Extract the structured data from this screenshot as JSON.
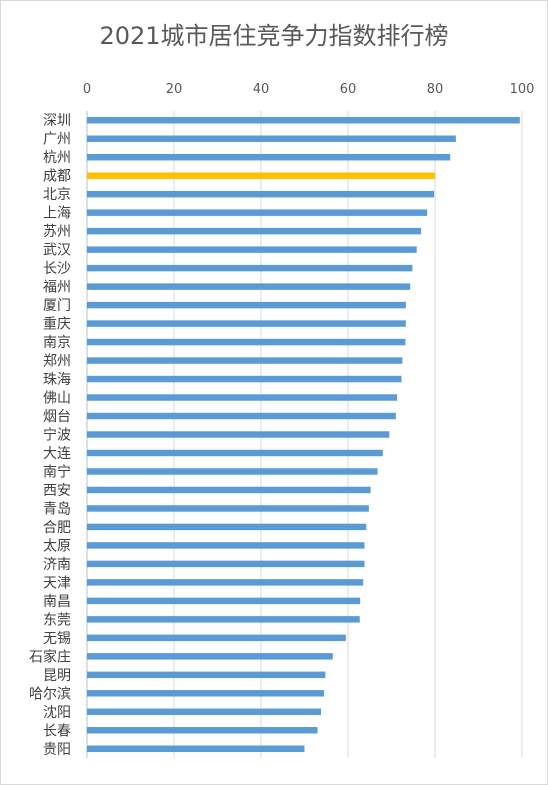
{
  "chart_data": {
    "type": "bar",
    "orientation": "horizontal",
    "title": "2021城市居住竞争力指数排行榜",
    "xlim": [
      0,
      100
    ],
    "xticks": [
      "0",
      "20",
      "40",
      "60",
      "80",
      "100"
    ],
    "categories": [
      "深圳",
      "广州",
      "杭州",
      "成都",
      "北京",
      "上海",
      "苏州",
      "武汉",
      "长沙",
      "福州",
      "厦门",
      "重庆",
      "南京",
      "郑州",
      "珠海",
      "佛山",
      "烟台",
      "宁波",
      "大连",
      "南宁",
      "西安",
      "青岛",
      "合肥",
      "太原",
      "济南",
      "天津",
      "南昌",
      "东莞",
      "无锡",
      "石家庄",
      "昆明",
      "哈尔滨",
      "沈阳",
      "长春",
      "贵阳"
    ],
    "values": [
      99.5,
      84.8,
      83.5,
      80,
      79.8,
      78.2,
      76.8,
      75.8,
      74.8,
      74.3,
      73.3,
      73.3,
      73.2,
      72.5,
      72.3,
      71.3,
      71,
      69.5,
      68,
      66.8,
      65.2,
      64.8,
      64.2,
      63.8,
      63.8,
      63.5,
      62.8,
      62.7,
      59.5,
      56.5,
      54.8,
      54.5,
      53.8,
      53,
      50
    ],
    "colors": {
      "default": "#5b9bd5",
      "highlight": "#ffc000"
    },
    "highlight_category": "成都",
    "grid": true
  }
}
